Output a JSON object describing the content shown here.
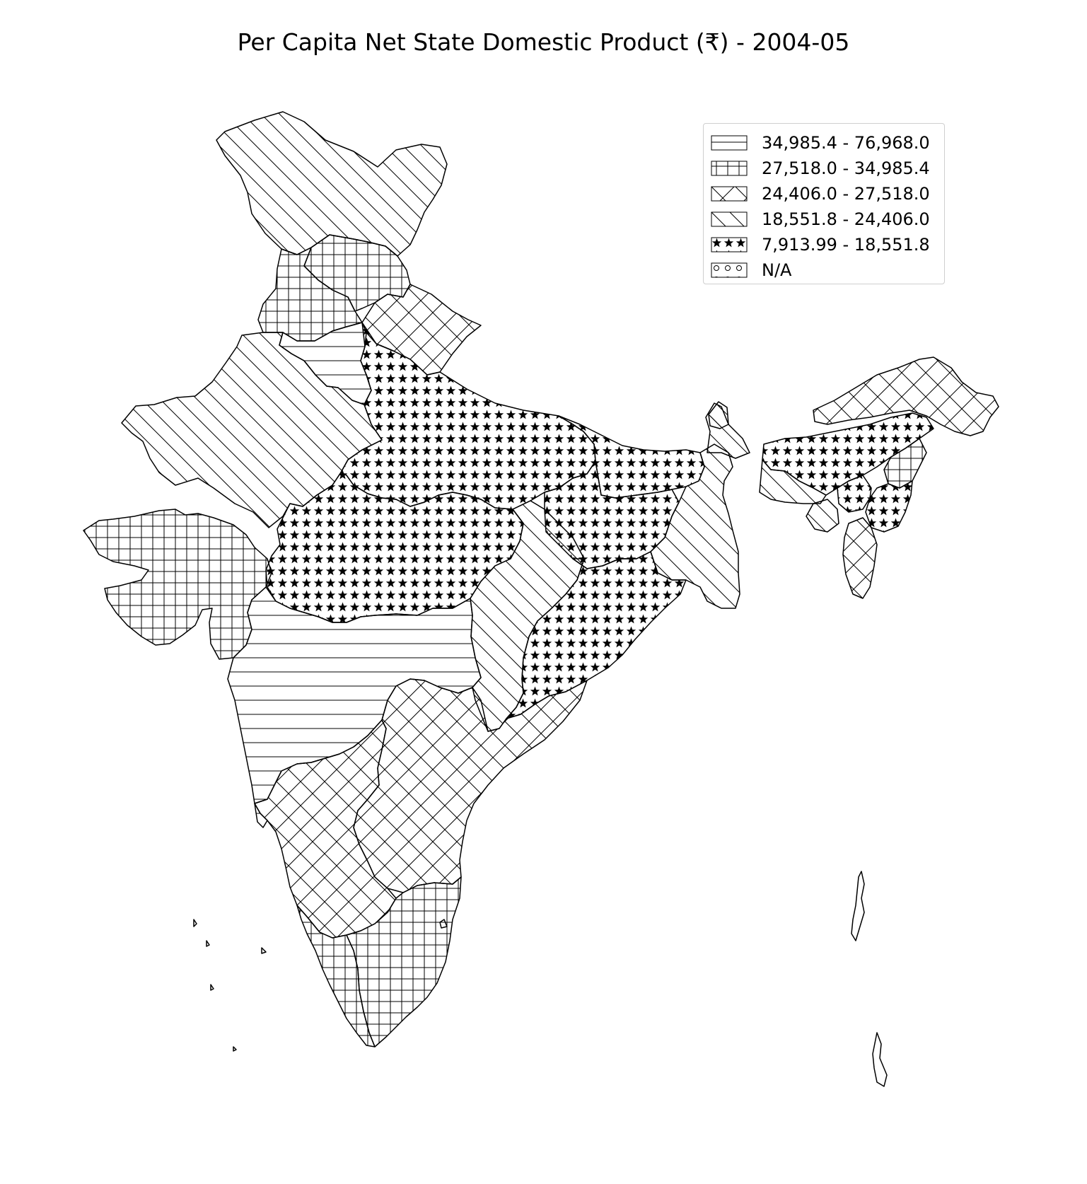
{
  "title": "Per Capita Net State Domestic Product (₹) - 2004-05",
  "legend": {
    "items": [
      {
        "label": "34,985.4 - 76,968.0",
        "pattern": "horizontal"
      },
      {
        "label": "27,518.0 - 34,985.4",
        "pattern": "grid"
      },
      {
        "label": "24,406.0 - 27,518.0",
        "pattern": "crosshatch"
      },
      {
        "label": "18,551.8 - 24,406.0",
        "pattern": "diagonal"
      },
      {
        "label": "7,913.99 - 18,551.8",
        "pattern": "stars"
      },
      {
        "label": "N/A",
        "pattern": "circles"
      }
    ]
  },
  "colors": {
    "line": "#000000",
    "background": "#ffffff"
  }
}
